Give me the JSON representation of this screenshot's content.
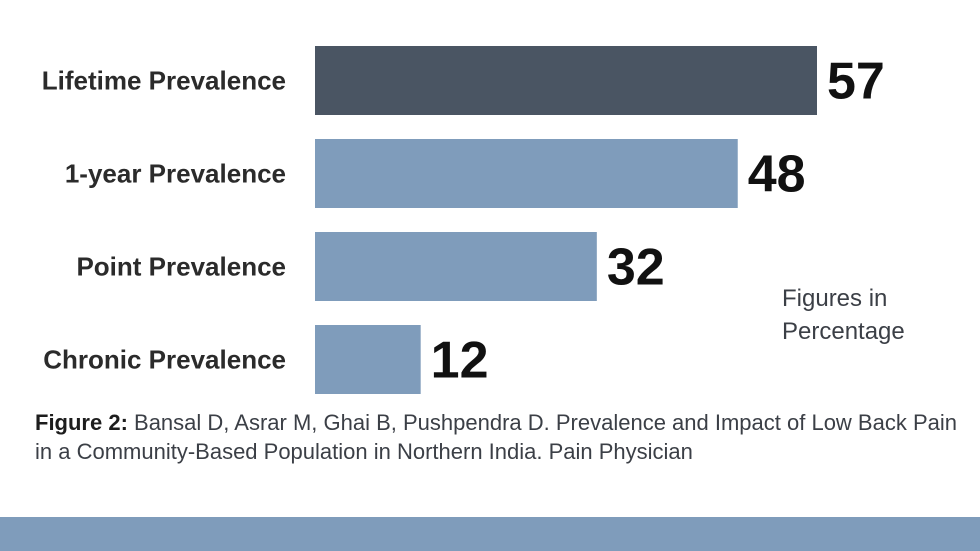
{
  "chart_data": {
    "type": "bar",
    "orientation": "horizontal",
    "categories": [
      "Lifetime Prevalence",
      "1-year Prevalence",
      "Point Prevalence",
      "Chronic Prevalence"
    ],
    "values": [
      57,
      48,
      32,
      12
    ],
    "value_labels": [
      "57",
      "48",
      "32",
      "12"
    ],
    "xlim": [
      0,
      57
    ],
    "grid": false,
    "colors": {
      "highlight": "#4a5563",
      "default": "#7f9cbb"
    },
    "highlight_index": 0,
    "units_note": "Figures in\nPercentage"
  },
  "caption": {
    "lead": "Figure 2:",
    "text": " Bansal D, Asrar M, Ghai B, Pushpendra D. Prevalence and Impact of Low Back Pain in a Community-Based Population in Northern India. Pain Physician"
  },
  "colors": {
    "footer_band": "#7f9cbb"
  }
}
